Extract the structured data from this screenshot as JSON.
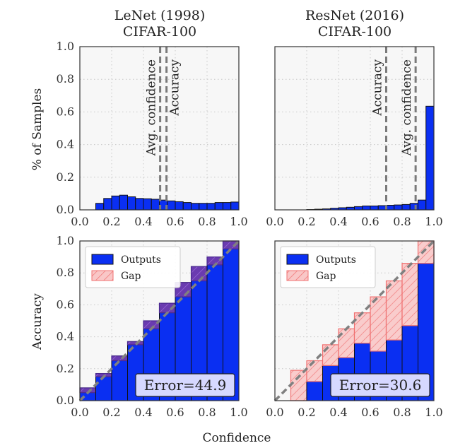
{
  "colors": {
    "outputs": "#0a2ff2",
    "gap_fill": "#f9c7c7",
    "gap_stroke": "#f07070",
    "overlap": "#6a3bb0",
    "diagonal": "#808080",
    "vline": "#7a7a7a",
    "panel_bg": "#f7f7f7",
    "error_box": "#d6d8ff"
  },
  "figure": {
    "xlabel": "Confidence",
    "panels": [
      {
        "title_line1": "LeNet (1998)",
        "title_line2": "CIFAR-100",
        "histogram_ylabel": "% of Samples",
        "accuracy_ylabel": "Accuracy",
        "legend_outputs": "Outputs",
        "legend_gap": "Gap",
        "error_text": "Error=44.9",
        "vline_labels": [
          "Avg. confidence",
          "Accuracy"
        ]
      },
      {
        "title_line1": "ResNet (2016)",
        "title_line2": "CIFAR-100",
        "histogram_ylabel": "",
        "accuracy_ylabel": "",
        "legend_outputs": "Outputs",
        "legend_gap": "Gap",
        "error_text": "Error=30.6",
        "vline_labels": [
          "Accuracy",
          "Avg. confidence"
        ]
      }
    ]
  },
  "chart_data": [
    {
      "type": "bar",
      "panel": "LeNet histogram",
      "xlim": [
        0,
        1
      ],
      "ylim": [
        0,
        1
      ],
      "xticks": [
        "0.0",
        "0.2",
        "0.4",
        "0.6",
        "0.8",
        "1.0"
      ],
      "yticks": [
        "0.0",
        "0.2",
        "0.4",
        "0.6",
        "0.8",
        "1.0"
      ],
      "bin_width": 0.05,
      "bin_starts": [
        0.0,
        0.05,
        0.1,
        0.15,
        0.2,
        0.25,
        0.3,
        0.35,
        0.4,
        0.45,
        0.5,
        0.55,
        0.6,
        0.65,
        0.7,
        0.75,
        0.8,
        0.85,
        0.9,
        0.95
      ],
      "values": [
        0.0,
        0.0,
        0.04,
        0.07,
        0.085,
        0.09,
        0.08,
        0.07,
        0.068,
        0.065,
        0.06,
        0.055,
        0.05,
        0.045,
        0.04,
        0.04,
        0.04,
        0.045,
        0.045,
        0.048
      ],
      "vlines": [
        {
          "label": "Avg. confidence",
          "x": 0.505
        },
        {
          "label": "Accuracy",
          "x": 0.545
        }
      ],
      "grid": true
    },
    {
      "type": "bar",
      "panel": "ResNet histogram",
      "xlim": [
        0,
        1
      ],
      "ylim": [
        0,
        1
      ],
      "xticks": [
        "0.0",
        "0.2",
        "0.4",
        "0.6",
        "0.8",
        "1.0"
      ],
      "bin_width": 0.05,
      "bin_starts": [
        0.0,
        0.05,
        0.1,
        0.15,
        0.2,
        0.25,
        0.3,
        0.35,
        0.4,
        0.45,
        0.5,
        0.55,
        0.6,
        0.65,
        0.7,
        0.75,
        0.8,
        0.85,
        0.9,
        0.95
      ],
      "values": [
        0.0,
        0.0,
        0.0,
        0.0,
        0.002,
        0.004,
        0.006,
        0.01,
        0.013,
        0.016,
        0.02,
        0.024,
        0.024,
        0.026,
        0.028,
        0.03,
        0.033,
        0.04,
        0.06,
        0.635
      ],
      "vlines": [
        {
          "label": "Accuracy",
          "x": 0.7
        },
        {
          "label": "Avg. confidence",
          "x": 0.885
        }
      ],
      "grid": true
    },
    {
      "type": "bar",
      "panel": "LeNet reliability diagram",
      "xlim": [
        0,
        1
      ],
      "ylim": [
        0,
        1
      ],
      "xticks": [
        "0.0",
        "0.2",
        "0.4",
        "0.6",
        "0.8",
        "1.0"
      ],
      "yticks": [
        "0.0",
        "0.2",
        "0.4",
        "0.6",
        "0.8",
        "1.0"
      ],
      "bin_width": 0.1,
      "bin_starts": [
        0.0,
        0.1,
        0.2,
        0.3,
        0.4,
        0.5,
        0.6,
        0.7,
        0.8,
        0.9
      ],
      "outputs": [
        0.08,
        0.17,
        0.28,
        0.37,
        0.5,
        0.61,
        0.74,
        0.84,
        0.9,
        1.0
      ],
      "gap_expected": [
        0.05,
        0.15,
        0.25,
        0.35,
        0.45,
        0.55,
        0.65,
        0.75,
        0.85,
        0.95
      ],
      "legend": [
        "Outputs",
        "Gap"
      ],
      "legend_position": "top-left",
      "annotation": "Error=44.9",
      "grid": true
    },
    {
      "type": "bar",
      "panel": "ResNet reliability diagram",
      "xlim": [
        0,
        1
      ],
      "ylim": [
        0,
        1
      ],
      "xticks": [
        "0.0",
        "0.2",
        "0.4",
        "0.6",
        "0.8",
        "1.0"
      ],
      "yticks": [
        "0.0",
        "0.2",
        "0.4",
        "0.6",
        "0.8",
        "1.0"
      ],
      "bin_width": 0.1,
      "bin_starts": [
        0.0,
        0.1,
        0.2,
        0.3,
        0.4,
        0.5,
        0.6,
        0.7,
        0.8,
        0.9
      ],
      "outputs": [
        0.0,
        0.0,
        0.12,
        0.22,
        0.27,
        0.36,
        0.31,
        0.38,
        0.47,
        0.86
      ],
      "gap_expected": [
        0.0,
        0.19,
        0.25,
        0.35,
        0.45,
        0.55,
        0.65,
        0.75,
        0.86,
        1.0
      ],
      "legend": [
        "Outputs",
        "Gap"
      ],
      "legend_position": "top-left",
      "annotation": "Error=30.6",
      "grid": true
    }
  ]
}
